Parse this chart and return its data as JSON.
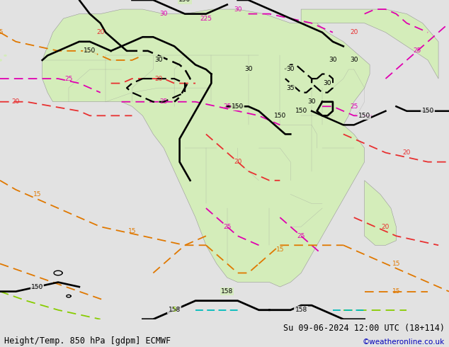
{
  "title_left": "Height/Temp. 850 hPa [gdpm] ECMWF",
  "title_right": "Su 09-06-2024 12:00 UTC (18+114)",
  "copyright": "©weatheronline.co.uk",
  "bg_color": "#e2e2e2",
  "land_color": "#d4edba",
  "sea_color": "#e2e2e2",
  "border_color": "#999999",
  "title_fontsize": 8.5,
  "copyright_color": "#0000bb",
  "black_contour_lw": 1.6,
  "temp_contour_lw": 1.3,
  "red_color": "#e83030",
  "magenta_color": "#e000b0",
  "orange_color": "#e07800",
  "green_color": "#88cc00",
  "cyan_color": "#00bbbb",
  "label_fs": 6.5
}
